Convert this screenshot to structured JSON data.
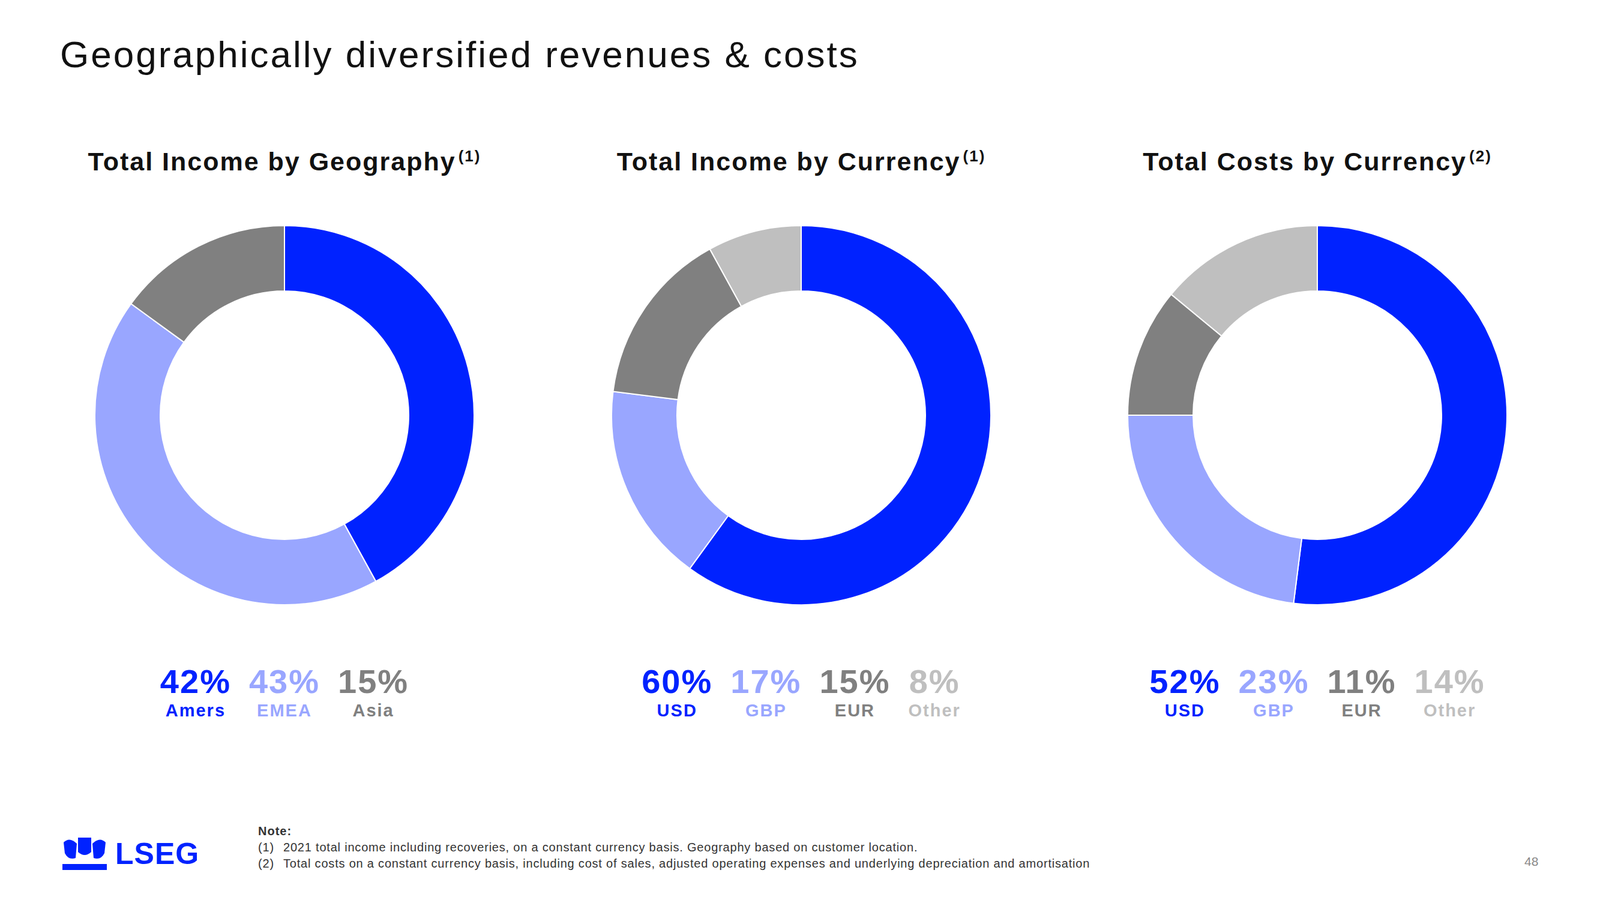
{
  "title": "Geographically diversified revenues & costs",
  "chart_data": [
    {
      "type": "pie",
      "title": "Total Income by Geography",
      "title_note": "(1)",
      "categories": [
        "Amers",
        "EMEA",
        "Asia"
      ],
      "values": [
        42,
        43,
        15
      ],
      "value_labels": [
        "42%",
        "43%",
        "15%"
      ],
      "colors": [
        "#0022ff",
        "#99a6ff",
        "#808080"
      ],
      "data_labels": true
    },
    {
      "type": "pie",
      "title": "Total Income by Currency",
      "title_note": "(1)",
      "categories": [
        "USD",
        "GBP",
        "EUR",
        "Other"
      ],
      "values": [
        60,
        17,
        15,
        8
      ],
      "value_labels": [
        "60%",
        "17%",
        "15%",
        "8%"
      ],
      "colors": [
        "#0022ff",
        "#99a6ff",
        "#808080",
        "#bfbfbf"
      ],
      "data_labels": true
    },
    {
      "type": "pie",
      "title": "Total Costs by Currency",
      "title_note": "(2)",
      "categories": [
        "USD",
        "GBP",
        "EUR",
        "Other"
      ],
      "values": [
        52,
        23,
        11,
        14
      ],
      "value_labels": [
        "52%",
        "23%",
        "11%",
        "14%"
      ],
      "colors": [
        "#0022ff",
        "#99a6ff",
        "#808080",
        "#bfbfbf"
      ],
      "data_labels": true
    }
  ],
  "notes": {
    "heading": "Note:",
    "items": [
      {
        "marker": "(1)",
        "text": "2021 total income including recoveries, on a constant currency basis. Geography based on customer location."
      },
      {
        "marker": "(2)",
        "text": "Total costs on a constant currency basis, including cost of sales, adjusted operating expenses and underlying depreciation and amortisation"
      }
    ]
  },
  "logo": "LSEG",
  "page_number": 48
}
